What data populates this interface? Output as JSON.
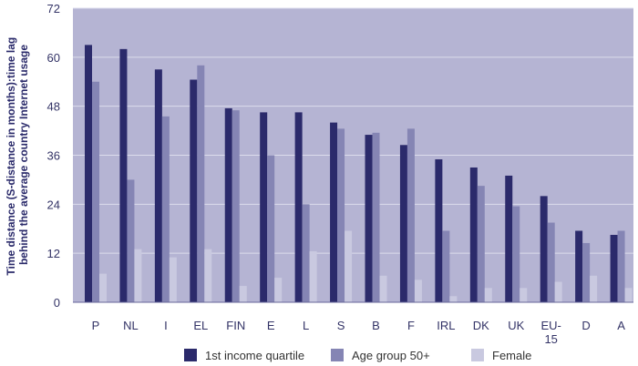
{
  "chart_data": {
    "type": "bar",
    "ylabel": "Time distance (S-distance in months):time lag behind the average country Internet usage",
    "ylabel_lines": [
      "Time distance (S-distance in months):time lag",
      "behind the average country Internet usage"
    ],
    "xlabel": "",
    "ylim": [
      0,
      72
    ],
    "yticks": [
      0,
      12,
      24,
      36,
      48,
      60,
      72
    ],
    "grid": true,
    "legend_position": "bottom",
    "categories": [
      "P",
      "NL",
      "I",
      "EL",
      "FIN",
      "E",
      "L",
      "S",
      "B",
      "F",
      "IRL",
      "DK",
      "UK",
      "EU-15",
      "D",
      "A"
    ],
    "category_lines": [
      [
        "P"
      ],
      [
        "NL"
      ],
      [
        "I"
      ],
      [
        "EL"
      ],
      [
        "FIN"
      ],
      [
        "E"
      ],
      [
        "L"
      ],
      [
        "S"
      ],
      [
        "B"
      ],
      [
        "F"
      ],
      [
        "IRL"
      ],
      [
        "DK"
      ],
      [
        "UK"
      ],
      [
        "EU-",
        "15"
      ],
      [
        "D"
      ],
      [
        "A"
      ]
    ],
    "series": [
      {
        "name": "1st income quartile",
        "color": "#2b2a6b",
        "values": [
          63,
          62,
          57,
          54.5,
          47.5,
          46.5,
          46.5,
          44,
          41,
          38.5,
          35,
          33,
          31,
          26,
          17.5,
          16.5
        ]
      },
      {
        "name": "Age group 50+",
        "color": "#8585b4",
        "values": [
          54,
          30,
          45.5,
          58,
          47,
          36,
          24,
          42.5,
          41.5,
          42.5,
          17.5,
          28.5,
          23.5,
          19.5,
          14.5,
          17.5
        ]
      },
      {
        "name": "Female",
        "color": "#c9c9e0",
        "values": [
          7,
          13,
          11,
          13,
          4,
          6,
          12.5,
          17.5,
          6.5,
          5.5,
          1.5,
          3.5,
          3.5,
          5,
          6.5,
          3.5
        ]
      }
    ],
    "colors": {
      "plot_background": "#b5b4d3",
      "gridline": "#dcdcec",
      "axis": "#666699"
    }
  }
}
